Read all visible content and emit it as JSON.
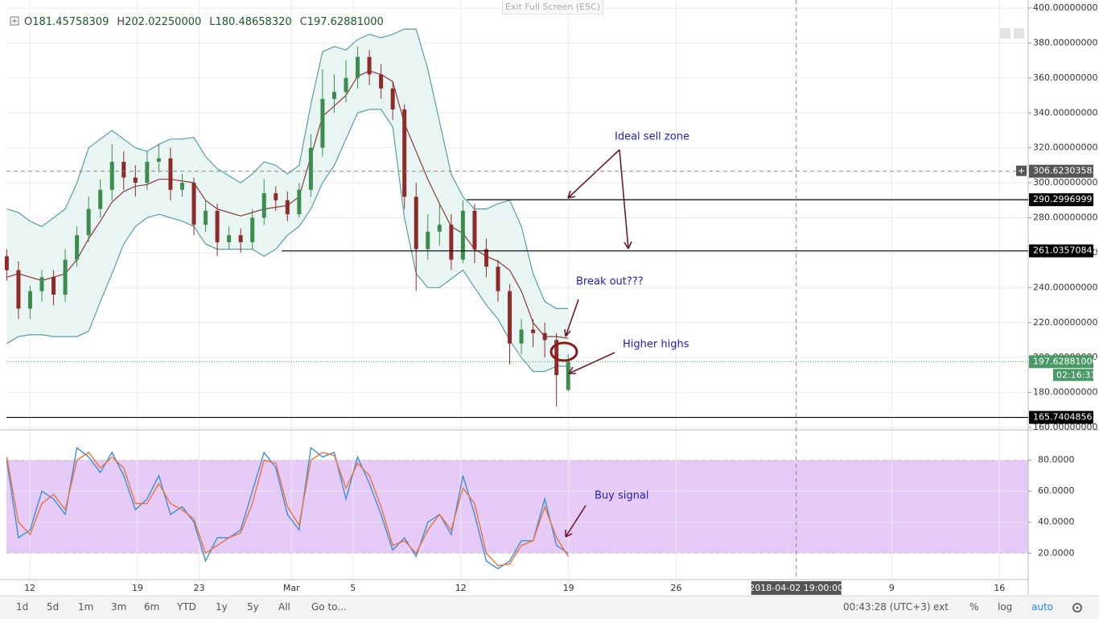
{
  "header": {
    "items": [
      {
        "key": "O",
        "value": "181.45758309"
      },
      {
        "key": "H",
        "value": "202.02250000"
      },
      {
        "key": "L",
        "value": "180.48658320"
      },
      {
        "key": "C",
        "value": "197.62881000"
      }
    ]
  },
  "top_button": "Exit Full Screen (ESC)",
  "annotations": [
    "Ideal sell zone",
    "Break out???",
    "Higher highs",
    "Buy signal"
  ],
  "toolbar": {
    "left": [
      "1d",
      "5d",
      "1m",
      "3m",
      "6m",
      "YTD",
      "1y",
      "5y",
      "All",
      "Go to..."
    ],
    "right": [
      "00:43:28 (UTC+3)",
      "ext",
      "%",
      "log",
      "auto"
    ]
  },
  "chart_data": [
    {
      "type": "candlestick",
      "x": [
        -1.5,
        -0.74,
        0.02,
        0.78,
        1.54,
        2.3,
        3.06,
        3.82,
        4.58,
        5.34,
        6.1,
        6.86,
        7.62,
        8.38,
        9.14,
        9.9,
        10.66,
        11.42,
        12.18,
        12.94,
        13.7,
        14.46,
        15.22,
        15.98,
        16.74,
        17.5,
        18.26,
        19.02,
        19.78,
        20.54,
        21.3,
        22.06,
        22.82,
        23.58,
        24.34,
        25.1,
        25.86,
        26.62,
        27.38,
        28.14,
        28.9,
        29.66,
        30.42,
        31.18,
        31.94,
        32.7,
        33.46,
        34.22,
        34.98
      ],
      "open": [
        258,
        250,
        228,
        238,
        246,
        236,
        256,
        270,
        285,
        296,
        312,
        303,
        300,
        312,
        314,
        296,
        300,
        276,
        284,
        266,
        270,
        266,
        280,
        294,
        290,
        282,
        296,
        320,
        348,
        352,
        360,
        372,
        362,
        354,
        342,
        292,
        262,
        272,
        276,
        256,
        284,
        262,
        252,
        238,
        208,
        216,
        214,
        210,
        181.45758309
      ],
      "high": [
        262,
        255,
        241,
        250,
        250,
        262,
        275,
        292,
        302,
        322,
        318,
        310,
        318,
        322,
        320,
        305,
        303,
        290,
        288,
        275,
        274,
        285,
        302,
        298,
        295,
        300,
        328,
        365,
        362,
        370,
        378,
        376,
        368,
        358,
        345,
        300,
        282,
        288,
        282,
        290,
        288,
        268,
        256,
        242,
        222,
        222,
        220,
        214,
        202.0225
      ],
      "low": [
        244,
        222,
        222,
        232,
        230,
        232,
        252,
        266,
        280,
        290,
        296,
        292,
        296,
        306,
        290,
        292,
        270,
        272,
        258,
        262,
        260,
        262,
        276,
        284,
        278,
        280,
        292,
        315,
        340,
        346,
        354,
        356,
        348,
        336,
        285,
        238,
        256,
        264,
        250,
        254,
        254,
        246,
        232,
        196,
        202,
        206,
        200,
        172,
        180.4865832
      ],
      "close": [
        250,
        228,
        238,
        246,
        236,
        256,
        270,
        285,
        296,
        312,
        303,
        300,
        312,
        314,
        296,
        300,
        276,
        284,
        266,
        270,
        266,
        280,
        294,
        290,
        282,
        296,
        320,
        348,
        352,
        360,
        372,
        362,
        354,
        342,
        292,
        262,
        272,
        276,
        256,
        284,
        262,
        252,
        238,
        208,
        216,
        214,
        210,
        190,
        197.62881
      ],
      "up_color": "#3d8c4f",
      "down_color": "#8e2a2a",
      "overlays": {
        "upper": [
          285,
          283,
          278,
          275,
          280,
          285,
          300,
          320,
          325,
          330,
          325,
          320,
          318,
          322,
          325,
          325,
          326,
          315,
          308,
          304,
          300,
          305,
          312,
          310,
          305,
          310,
          345,
          375,
          378,
          376,
          382,
          385,
          383,
          385,
          388,
          388,
          365,
          335,
          305,
          292,
          285,
          285,
          288,
          290,
          275,
          248,
          232,
          228,
          228
        ],
        "lower": [
          208,
          212,
          213,
          213,
          212,
          212,
          212,
          215,
          232,
          248,
          265,
          275,
          280,
          282,
          280,
          278,
          275,
          265,
          262,
          262,
          262,
          262,
          258,
          262,
          270,
          275,
          285,
          300,
          310,
          325,
          340,
          342,
          342,
          332,
          280,
          248,
          240,
          240,
          245,
          250,
          240,
          230,
          222,
          210,
          200,
          192,
          192,
          195,
          195
        ],
        "basis": [
          246,
          248,
          246,
          244,
          246,
          248,
          256,
          268,
          278,
          289,
          295,
          298,
          299,
          302,
          302,
          301,
          300,
          290,
          285,
          283,
          281,
          283,
          285,
          286,
          287,
          292,
          315,
          338,
          344,
          350,
          361,
          364,
          362,
          358,
          334,
          318,
          302,
          288,
          275,
          271,
          262,
          258,
          255,
          250,
          238,
          220,
          212,
          212,
          211
        ],
        "band_color": "#5a9ea3",
        "fill": "#e8f5f3",
        "basis_color": "#8b3a3a"
      },
      "xlim": [
        -1.52,
        64.87
      ],
      "xticks": [
        {
          "value": 0,
          "label": "12"
        },
        {
          "value": 7,
          "label": "19"
        },
        {
          "value": 11,
          "label": "23"
        },
        {
          "value": 17,
          "label": "Mar"
        },
        {
          "value": 21,
          "label": "5"
        },
        {
          "value": 28,
          "label": "12"
        },
        {
          "value": 35,
          "label": "19"
        },
        {
          "value": 42,
          "label": "26"
        },
        {
          "value": 56,
          "label": "9"
        },
        {
          "value": 63,
          "label": "16"
        }
      ],
      "ylim": [
        160,
        400
      ],
      "yticks": [
        {
          "value": 160,
          "label": "160.00000000"
        },
        {
          "value": 180,
          "label": "180.00000000"
        },
        {
          "value": 200,
          "label": "200.00000000"
        },
        {
          "value": 220,
          "label": "220.00000000"
        },
        {
          "value": 240,
          "label": "240.00000000"
        },
        {
          "value": 260,
          "label": "260.00000000"
        },
        {
          "value": 280,
          "label": "280.00000000"
        },
        {
          "value": 300,
          "label": "300.00000000"
        },
        {
          "value": 320,
          "label": "320.00000000"
        },
        {
          "value": 340,
          "label": "340.00000000"
        },
        {
          "value": 360,
          "label": "360.00000000"
        },
        {
          "value": 380,
          "label": "380.00000000"
        },
        {
          "value": 400,
          "label": "400.00000000"
        }
      ],
      "grid": true,
      "levels": [
        {
          "value": 290.29969997,
          "from": 28.4
        },
        {
          "value": 261.03570841,
          "from": 16.36
        },
        {
          "value": 165.74048563,
          "from": -1.52
        }
      ],
      "level_color": "#000000",
      "crosshair": {
        "x": {
          "value": 49.8,
          "label": "2018-04-02 19:00:00"
        },
        "y": 306.62303582
      },
      "last_price": {
        "value": 197.62881,
        "label": "197.62881000",
        "countdown": "02:16:31",
        "color": "#4a9a68"
      }
    },
    {
      "type": "line",
      "series": [
        {
          "color": "#3b8fd6",
          "values": [
            80,
            30,
            35,
            60,
            55,
            45,
            88,
            82,
            72,
            85,
            70,
            48,
            55,
            70,
            45,
            50,
            40,
            15,
            30,
            30,
            35,
            60,
            85,
            75,
            45,
            35,
            88,
            82,
            85,
            55,
            82,
            65,
            45,
            22,
            30,
            18,
            40,
            45,
            32,
            70,
            45,
            15,
            10,
            15,
            28,
            28,
            55,
            25,
            20
          ]
        },
        {
          "color": "#e8743b",
          "values": [
            82,
            40,
            32,
            52,
            58,
            48,
            80,
            85,
            75,
            82,
            75,
            52,
            52,
            65,
            52,
            48,
            42,
            20,
            25,
            30,
            33,
            52,
            80,
            78,
            50,
            38,
            80,
            85,
            83,
            62,
            78,
            70,
            50,
            25,
            28,
            20,
            35,
            45,
            35,
            62,
            52,
            20,
            12,
            13,
            25,
            28,
            50,
            30,
            18
          ]
        }
      ],
      "ylim": [
        3,
        98
      ],
      "yticks": [
        {
          "value": 20,
          "label": "20.0000"
        },
        {
          "value": 40,
          "label": "40.0000"
        },
        {
          "value": 60,
          "label": "60.0000"
        },
        {
          "value": 80,
          "label": "80.0000"
        }
      ],
      "band": [
        20,
        80
      ],
      "band_color": "#e6caf7",
      "grid": true
    }
  ]
}
